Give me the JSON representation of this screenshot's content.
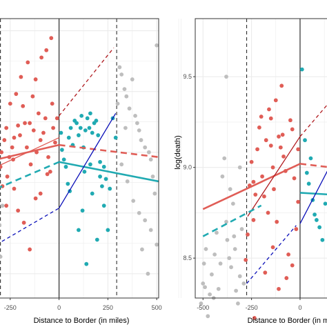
{
  "chart_data": [
    {
      "type": "scatter",
      "panel": "left",
      "xlabel": "Distance to Border (in miles)",
      "ylabel": "",
      "xlim": [
        -320,
        510
      ],
      "ylim": [
        -0.1,
        1.05
      ],
      "x_ticks": [
        -250,
        0,
        250,
        500
      ],
      "x_tick_labels": [
        "-250",
        "0",
        "250",
        "500"
      ],
      "y_ticks": [],
      "grid": true,
      "vlines": {
        "solid": [
          0
        ],
        "dashed": [
          -300,
          295
        ]
      },
      "points": {
        "red": [
          [
            -300,
            0.44
          ],
          [
            -295,
            0.5
          ],
          [
            -290,
            0.36
          ],
          [
            -280,
            0.55
          ],
          [
            -270,
            0.6
          ],
          [
            -265,
            0.4
          ],
          [
            -255,
            0.48
          ],
          [
            -250,
            0.7
          ],
          [
            -240,
            0.52
          ],
          [
            -235,
            0.47
          ],
          [
            -230,
            0.56
          ],
          [
            -220,
            0.74
          ],
          [
            -210,
            0.61
          ],
          [
            -200,
            0.57
          ],
          [
            -195,
            0.81
          ],
          [
            -185,
            0.69
          ],
          [
            -175,
            0.62
          ],
          [
            -165,
            0.52
          ],
          [
            -160,
            0.87
          ],
          [
            -150,
            0.62
          ],
          [
            -145,
            0.45
          ],
          [
            -135,
            0.73
          ],
          [
            -130,
            0.59
          ],
          [
            -120,
            0.8
          ],
          [
            -115,
            0.5
          ],
          [
            -105,
            0.66
          ],
          [
            -95,
            0.55
          ],
          [
            -90,
            0.89
          ],
          [
            -80,
            0.58
          ],
          [
            -70,
            0.64
          ],
          [
            -65,
            0.92
          ],
          [
            -55,
            0.48
          ],
          [
            -45,
            0.42
          ],
          [
            -40,
            0.97
          ],
          [
            -35,
            0.7
          ],
          [
            -30,
            0.6
          ],
          [
            -20,
            0.54
          ],
          [
            -10,
            0.64
          ],
          [
            -270,
            0.28
          ],
          [
            -230,
            0.35
          ],
          [
            -210,
            0.26
          ],
          [
            -180,
            0.21
          ],
          [
            -150,
            0.1
          ],
          [
            -120,
            0.31
          ],
          [
            -95,
            0.33
          ],
          [
            -60,
            0.41
          ]
        ],
        "teal": [
          [
            10,
            0.58
          ],
          [
            15,
            0.51
          ],
          [
            25,
            0.47
          ],
          [
            35,
            0.44
          ],
          [
            45,
            0.37
          ],
          [
            50,
            0.56
          ],
          [
            60,
            0.6
          ],
          [
            70,
            0.53
          ],
          [
            80,
            0.63
          ],
          [
            90,
            0.62
          ],
          [
            100,
            0.57
          ],
          [
            110,
            0.6
          ],
          [
            115,
            0.65
          ],
          [
            125,
            0.52
          ],
          [
            135,
            0.59
          ],
          [
            145,
            0.64
          ],
          [
            155,
            0.6
          ],
          [
            160,
            0.66
          ],
          [
            170,
            0.58
          ],
          [
            180,
            0.62
          ],
          [
            190,
            0.63
          ],
          [
            200,
            0.57
          ],
          [
            210,
            0.4
          ],
          [
            220,
            0.36
          ],
          [
            230,
            0.28
          ],
          [
            240,
            0.39
          ],
          [
            260,
            0.35
          ],
          [
            275,
            0.64
          ],
          [
            290,
            0.56
          ],
          [
            55,
            0.34
          ],
          [
            100,
            0.18
          ],
          [
            120,
            0.26
          ],
          [
            140,
            0.04
          ],
          [
            170,
            0.33
          ],
          [
            195,
            0.14
          ],
          [
            210,
            0.46
          ],
          [
            250,
            0.18
          ],
          [
            230,
            0.44
          ],
          [
            130,
            0.42
          ],
          [
            160,
            0.45
          ]
        ],
        "gray": [
          [
            -305,
            0.2
          ],
          [
            -300,
            0.07
          ],
          [
            -290,
            0.28
          ],
          [
            310,
            0.85
          ],
          [
            320,
            0.82
          ],
          [
            335,
            0.76
          ],
          [
            345,
            0.73
          ],
          [
            360,
            0.68
          ],
          [
            375,
            0.8
          ],
          [
            390,
            0.65
          ],
          [
            400,
            0.62
          ],
          [
            410,
            0.59
          ],
          [
            420,
            0.55
          ],
          [
            440,
            0.52
          ],
          [
            460,
            0.5
          ],
          [
            470,
            0.47
          ],
          [
            480,
            0.4
          ],
          [
            490,
            0.33
          ],
          [
            500,
            0.94
          ],
          [
            320,
            0.45
          ],
          [
            350,
            0.38
          ],
          [
            380,
            0.3
          ],
          [
            410,
            0.25
          ],
          [
            440,
            0.22
          ],
          [
            470,
            0.18
          ],
          [
            340,
            0.6
          ],
          [
            425,
            0.1
          ],
          [
            455,
            0.0
          ],
          [
            300,
            0.7
          ],
          [
            500,
            0.12
          ]
        ]
      },
      "lines": [
        {
          "color": "red",
          "style": "solid",
          "width": "thin",
          "points": [
            [
              -320,
              0.44
            ],
            [
              0,
              0.56
            ]
          ]
        },
        {
          "color": "red",
          "style": "solid",
          "width": "thick",
          "points": [
            [
              -320,
              0.47
            ],
            [
              0,
              0.53
            ]
          ]
        },
        {
          "color": "red",
          "style": "dashed",
          "width": "thick",
          "points": [
            [
              0,
              0.53
            ],
            [
              510,
              0.48
            ]
          ]
        },
        {
          "color": "darkred",
          "style": "dashed",
          "width": "thin",
          "points": [
            [
              -320,
              0.48
            ],
            [
              -310,
              0.45
            ]
          ]
        },
        {
          "color": "darkred",
          "style": "dashed",
          "width": "thin",
          "points": [
            [
              0,
              0.65
            ],
            [
              280,
              0.93
            ]
          ]
        },
        {
          "color": "teal",
          "style": "dashed",
          "width": "thick",
          "points": [
            [
              -320,
              0.35
            ],
            [
              0,
              0.46
            ]
          ]
        },
        {
          "color": "teal",
          "style": "solid",
          "width": "thick",
          "points": [
            [
              0,
              0.46
            ],
            [
              510,
              0.38
            ]
          ]
        },
        {
          "color": "blue",
          "style": "solid",
          "width": "thin",
          "points": [
            [
              0,
              0.27
            ],
            [
              290,
              0.66
            ]
          ]
        },
        {
          "color": "blue",
          "style": "dashed",
          "width": "thin",
          "points": [
            [
              -320,
              0.12
            ],
            [
              0,
              0.27
            ]
          ]
        }
      ]
    },
    {
      "type": "scatter",
      "panel": "right",
      "xlabel": "Distance to Border (in miles)",
      "ylabel": "log(death)",
      "xlim": [
        -540,
        160
      ],
      "ylim": [
        8.28,
        9.82
      ],
      "x_ticks": [
        -500,
        -250,
        0
      ],
      "x_tick_labels": [
        "-500",
        "-250",
        "0"
      ],
      "y_ticks": [
        8.5,
        9.0,
        9.5
      ],
      "y_tick_labels": [
        "8.5",
        "9.0",
        "9.5"
      ],
      "grid": true,
      "vlines": {
        "solid": [
          0
        ],
        "dashed": [
          -275
        ]
      },
      "points": {
        "red": [
          [
            -260,
            8.9
          ],
          [
            -250,
            9.03
          ],
          [
            -240,
            8.92
          ],
          [
            -230,
            8.85
          ],
          [
            -220,
            9.1
          ],
          [
            -210,
            9.22
          ],
          [
            -200,
            9.28
          ],
          [
            -195,
            8.95
          ],
          [
            -185,
            8.84
          ],
          [
            -175,
            9.15
          ],
          [
            -165,
            8.75
          ],
          [
            -160,
            9.32
          ],
          [
            -150,
            9.27
          ],
          [
            -140,
            9.0
          ],
          [
            -135,
            8.88
          ],
          [
            -125,
            9.37
          ],
          [
            -120,
            8.7
          ],
          [
            -110,
            9.17
          ],
          [
            -100,
            9.11
          ],
          [
            -95,
            9.45
          ],
          [
            -85,
            9.06
          ],
          [
            -75,
            8.98
          ],
          [
            -60,
            8.52
          ],
          [
            -50,
            9.26
          ],
          [
            -40,
            9.21
          ],
          [
            -30,
            8.94
          ],
          [
            -20,
            8.66
          ],
          [
            -10,
            8.81
          ],
          [
            -235,
            8.17
          ],
          [
            -180,
            8.42
          ],
          [
            -140,
            8.56
          ],
          [
            -110,
            8.33
          ],
          [
            -70,
            8.39
          ],
          [
            -40,
            8.46
          ],
          [
            -280,
            8.49
          ],
          [
            -270,
            8.63
          ],
          [
            -240,
            8.71
          ],
          [
            -90,
            9.18
          ],
          [
            -150,
            9.12
          ],
          [
            -10,
            9.1
          ]
        ],
        "teal": [
          [
            10,
            9.54
          ],
          [
            25,
            9.15
          ],
          [
            35,
            8.97
          ],
          [
            45,
            8.91
          ],
          [
            55,
            9.05
          ],
          [
            65,
            8.82
          ],
          [
            75,
            8.74
          ],
          [
            85,
            8.71
          ],
          [
            100,
            8.67
          ],
          [
            115,
            8.6
          ],
          [
            130,
            8.8
          ],
          [
            150,
            8.63
          ]
        ],
        "gray": [
          [
            -510,
            8.25
          ],
          [
            -500,
            8.36
          ],
          [
            -495,
            8.47
          ],
          [
            -490,
            8.34
          ],
          [
            -485,
            8.55
          ],
          [
            -475,
            8.18
          ],
          [
            -465,
            8.3
          ],
          [
            -455,
            8.41
          ],
          [
            -445,
            8.28
          ],
          [
            -440,
            8.52
          ],
          [
            -430,
            8.64
          ],
          [
            -420,
            8.33
          ],
          [
            -410,
            8.47
          ],
          [
            -400,
            8.95
          ],
          [
            -390,
            9.05
          ],
          [
            -380,
            8.7
          ],
          [
            -375,
            8.6
          ],
          [
            -365,
            8.5
          ],
          [
            -355,
            8.45
          ],
          [
            -345,
            8.8
          ],
          [
            -335,
            8.55
          ],
          [
            -330,
            8.32
          ],
          [
            -320,
            8.25
          ],
          [
            -310,
            8.4
          ],
          [
            -300,
            8.66
          ],
          [
            -290,
            8.36
          ],
          [
            -380,
            9.5
          ],
          [
            -340,
            8.62
          ],
          [
            -310,
            9.0
          ],
          [
            -360,
            8.88
          ]
        ]
      },
      "lines": [
        {
          "color": "red",
          "style": "solid",
          "width": "thick",
          "points": [
            [
              -500,
              8.77
            ],
            [
              0,
              9.02
            ]
          ]
        },
        {
          "color": "red",
          "style": "dashed",
          "width": "thick",
          "points": [
            [
              0,
              9.02
            ],
            [
              160,
              9.0
            ]
          ]
        },
        {
          "color": "darkred",
          "style": "solid",
          "width": "thin",
          "points": [
            [
              -270,
              8.73
            ],
            [
              0,
              9.17
            ]
          ]
        },
        {
          "color": "darkred",
          "style": "dashed",
          "width": "thin",
          "points": [
            [
              0,
              9.17
            ],
            [
              160,
              9.37
            ]
          ]
        },
        {
          "color": "teal",
          "style": "dashed",
          "width": "thick",
          "points": [
            [
              -500,
              8.62
            ],
            [
              -200,
              8.79
            ]
          ]
        },
        {
          "color": "teal",
          "style": "solid",
          "width": "thick",
          "points": [
            [
              0,
              8.86
            ],
            [
              160,
              8.85
            ]
          ]
        },
        {
          "color": "blue",
          "style": "dashed",
          "width": "thin",
          "points": [
            [
              -275,
              8.36
            ],
            [
              -20,
              8.68
            ]
          ]
        },
        {
          "color": "blue",
          "style": "solid",
          "width": "thin",
          "points": [
            [
              0,
              8.69
            ],
            [
              160,
              9.02
            ]
          ]
        }
      ]
    }
  ],
  "colors": {
    "red": "#E05D56",
    "teal": "#20AAB2",
    "gray": "#BEBEBE",
    "darkred": "#B0191E",
    "blue": "#0A0FB8",
    "grid": "#EBEBEB",
    "panel_border": "#333333",
    "vline": "#1A1A1A"
  }
}
